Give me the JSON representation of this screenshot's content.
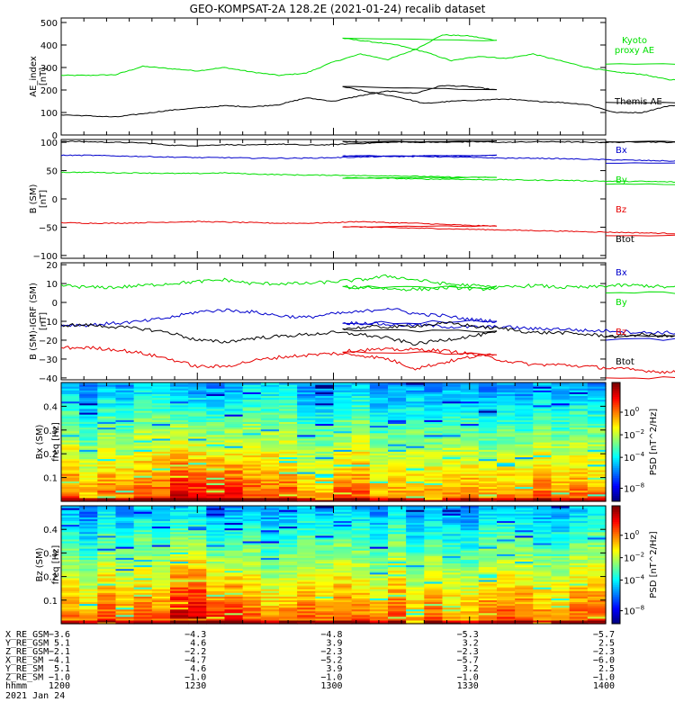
{
  "title": "GEO-KOMPSAT-2A 128.2E (2021-01-24) recalib dataset",
  "colors": {
    "black": "#000000",
    "red": "#e60000",
    "green": "#00e000",
    "blue": "#0000cc"
  },
  "chart_data": [
    {
      "type": "line",
      "ylabel": "AE_index\n[nT]",
      "ylim": [
        0,
        520
      ],
      "yticks": [
        0,
        100,
        200,
        300,
        400,
        500
      ],
      "x": [
        1200,
        1206,
        1212,
        1218,
        1224,
        1230,
        1236,
        1242,
        1248,
        1254,
        1260,
        1266,
        1272,
        1278,
        1284,
        1290,
        1296,
        1302,
        1308,
        1314,
        1320,
        1326,
        1332,
        1338,
        1344,
        1350,
        1356,
        1362,
        1368,
        1374,
        1380,
        1386,
        1392,
        1398,
        1400
      ],
      "series": [
        {
          "name": "Kyoto\nproxy AE",
          "color": "#00e000",
          "values": [
            265,
            265,
            268,
            305,
            295,
            285,
            300,
            280,
            265,
            275,
            325,
            360,
            335,
            380,
            445,
            440,
            420,
            430,
            415,
            400,
            370,
            330,
            350,
            340,
            360,
            330,
            300,
            280,
            270,
            245,
            250,
            300,
            320,
            315,
            315
          ]
        },
        {
          "name": "Themis AE",
          "color": "#000000",
          "values": [
            90,
            85,
            80,
            95,
            110,
            120,
            130,
            125,
            135,
            165,
            150,
            175,
            195,
            185,
            220,
            215,
            200,
            215,
            190,
            170,
            140,
            150,
            155,
            160,
            150,
            145,
            135,
            100,
            100,
            130,
            140,
            140,
            120,
            140,
            145
          ]
        }
      ]
    },
    {
      "type": "line",
      "ylabel": "B (SM)\n[nT]",
      "ylim": [
        -105,
        105
      ],
      "yticks": [
        -100,
        -50,
        0,
        50,
        100
      ],
      "series": [
        {
          "name": "Btot",
          "color": "#000000",
          "values": [
            102,
            101,
            100,
            99,
            95,
            94,
            96,
            95,
            97,
            95,
            96,
            98,
            100,
            101,
            100,
            101,
            102,
            101,
            100,
            101,
            100,
            101,
            101,
            100,
            101,
            101,
            100,
            100,
            101,
            100,
            100,
            100,
            101,
            102,
            101
          ]
        },
        {
          "name": "Bz",
          "color": "#e60000",
          "values": [
            -42,
            -43,
            -43,
            -42,
            -41,
            -40,
            -41,
            -42,
            -43,
            -43,
            -42,
            -40,
            -42,
            -43,
            -45,
            -47,
            -48,
            -49,
            -50,
            -51,
            -52,
            -53,
            -54,
            -55,
            -56,
            -57,
            -58,
            -59,
            -60,
            -61,
            -62,
            -63,
            -64,
            -64,
            -65
          ]
        },
        {
          "name": "By",
          "color": "#00e000",
          "values": [
            47,
            47,
            46,
            46,
            45,
            45,
            46,
            44,
            43,
            42,
            42,
            41,
            41,
            40,
            39,
            38,
            38,
            37,
            37,
            36,
            35,
            35,
            34,
            34,
            33,
            33,
            32,
            31,
            31,
            30,
            29,
            28,
            27,
            26,
            26
          ]
        },
        {
          "name": "Bx",
          "color": "#0000cc",
          "values": [
            77,
            77,
            76,
            75,
            74,
            73,
            73,
            72,
            72,
            72,
            73,
            74,
            75,
            76,
            76,
            76,
            77,
            76,
            76,
            75,
            75,
            74,
            73,
            72,
            72,
            71,
            70,
            69,
            68,
            67,
            66,
            65,
            64,
            63,
            63
          ]
        }
      ]
    },
    {
      "type": "line",
      "ylabel": "B (SM)-IGRF (SM)\n[nT]",
      "ylim": [
        -41,
        21
      ],
      "yticks": [
        -40,
        -30,
        -20,
        -10,
        0,
        10,
        20
      ],
      "series": [
        {
          "name": "By",
          "color": "#00e000",
          "values": [
            9,
            8,
            8,
            9,
            10,
            11,
            12,
            10,
            10,
            10,
            11,
            12,
            14,
            12,
            10,
            9,
            8,
            8,
            8,
            7,
            7,
            8,
            7,
            8,
            9,
            8,
            8,
            9,
            9,
            8,
            8,
            7,
            7,
            6,
            5
          ]
        },
        {
          "name": "Bx",
          "color": "#0000cc",
          "values": [
            -12,
            -12,
            -11,
            -10,
            -8,
            -5,
            -4,
            -5,
            -7,
            -8,
            -6,
            -5,
            -3,
            -6,
            -7,
            -9,
            -10,
            -11,
            -11,
            -12,
            -12,
            -13,
            -13,
            -13,
            -14,
            -14,
            -15,
            -15,
            -16,
            -16,
            -17,
            -18,
            -18,
            -19,
            -20
          ]
        },
        {
          "name": "Btot",
          "color": "#000000",
          "values": [
            -12,
            -12,
            -13,
            -14,
            -16,
            -20,
            -21,
            -19,
            -18,
            -17,
            -16,
            -17,
            -19,
            -22,
            -20,
            -18,
            -16,
            -14,
            -13,
            -13,
            -12,
            -11,
            -13,
            -14,
            -16,
            -16,
            -17,
            -18,
            -17,
            -18,
            -18,
            -19,
            -19,
            -18,
            -18
          ]
        },
        {
          "name": "Bz",
          "color": "#e60000",
          "values": [
            -24,
            -24,
            -25,
            -27,
            -30,
            -34,
            -34,
            -31,
            -29,
            -28,
            -27,
            -28,
            -30,
            -35,
            -32,
            -29,
            -27,
            -26,
            -25,
            -25,
            -25,
            -26,
            -28,
            -31,
            -33,
            -33,
            -34,
            -35,
            -36,
            -37,
            -37,
            -38,
            -39,
            -40,
            -40
          ]
        }
      ]
    },
    {
      "type": "heatmap",
      "ylabel": "Bx (SM)\nfreq [Hz]",
      "ylim": [
        0,
        0.5
      ],
      "yticks": [
        0.1,
        0.2,
        0.3,
        0.4
      ],
      "colorbar_label": "PSD [nT^2/Hz]",
      "cbar_ticks": [
        "10^0",
        "10^-2",
        "10^-4",
        "10^-8"
      ]
    },
    {
      "type": "heatmap",
      "ylabel": "Bz (SM)\nfreq [Hz]",
      "ylim": [
        0,
        0.5
      ],
      "yticks": [
        0.1,
        0.2,
        0.3,
        0.4
      ],
      "colorbar_label": "PSD [nT^2/Hz]",
      "cbar_ticks": [
        "10^0",
        "10^-2",
        "10^-4",
        "10^-8"
      ]
    }
  ],
  "ephemeris": {
    "rows": [
      {
        "label": "X_RE_GSM",
        "values": [
          "-3.6",
          "-4.3",
          "-4.8",
          "-5.3",
          "-5.7"
        ]
      },
      {
        "label": "Y_RE_GSM",
        "values": [
          "5.1",
          "4.6",
          "3.9",
          "3.2",
          "2.5"
        ]
      },
      {
        "label": "Z_RE_GSM",
        "values": [
          "-2.1",
          "-2.2",
          "-2.3",
          "-2.3",
          "-2.3"
        ]
      },
      {
        "label": "X_RE_SM",
        "values": [
          "-4.1",
          "-4.7",
          "-5.2",
          "-5.7",
          "-6.0"
        ]
      },
      {
        "label": "Y_RE_SM",
        "values": [
          "5.1",
          "4.6",
          "3.9",
          "3.2",
          "2.5"
        ]
      },
      {
        "label": "Z_RE_SM",
        "values": [
          "-1.0",
          "-1.0",
          "-1.0",
          "-1.0",
          "-1.0"
        ]
      },
      {
        "label": "hhmm",
        "values": [
          "1200",
          "1230",
          "1300",
          "1330",
          "1400"
        ]
      }
    ],
    "date": "2021 Jan 24"
  }
}
